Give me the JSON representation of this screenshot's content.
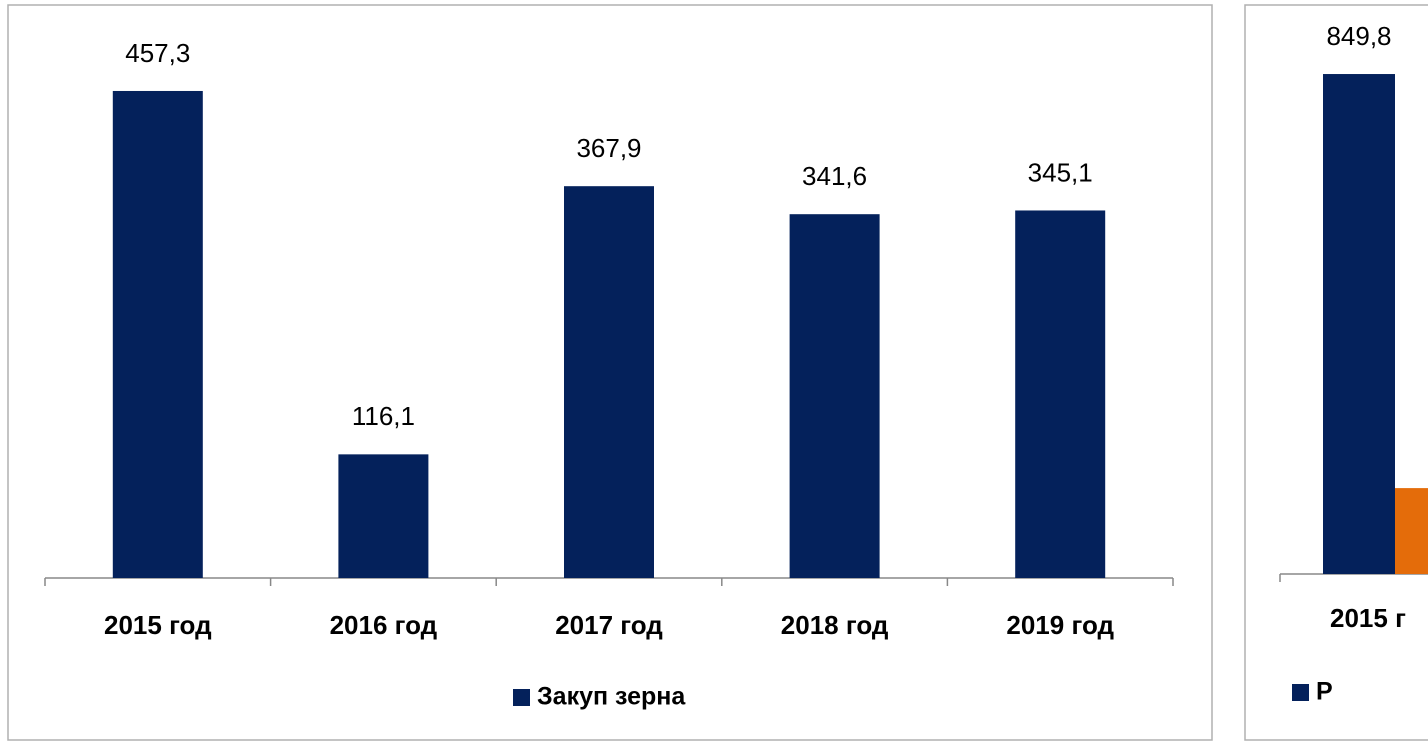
{
  "chart_data": [
    {
      "type": "bar",
      "categories": [
        "2015 год",
        "2016 год",
        "2017 год",
        "2018 год",
        "2019 год"
      ],
      "series": [
        {
          "name": "Закуп зерна",
          "color": "#04215b",
          "values": [
            457.3,
            116.1,
            367.9,
            341.6,
            345.1
          ],
          "value_labels": [
            "457,3",
            "116,1",
            "367,9",
            "341,6",
            "345,1"
          ]
        }
      ],
      "ylim": [
        0,
        500
      ],
      "legend": "bottom"
    },
    {
      "type": "bar",
      "categories": [
        "2015 г"
      ],
      "series": [
        {
          "name": "Р",
          "color": "#04215b",
          "values": [
            849.8
          ],
          "value_labels": [
            "849,8"
          ]
        },
        {
          "color": "#e46c0a",
          "values": [
            146
          ]
        }
      ],
      "ylim": [
        0,
        900
      ],
      "legend": "bottom"
    }
  ]
}
